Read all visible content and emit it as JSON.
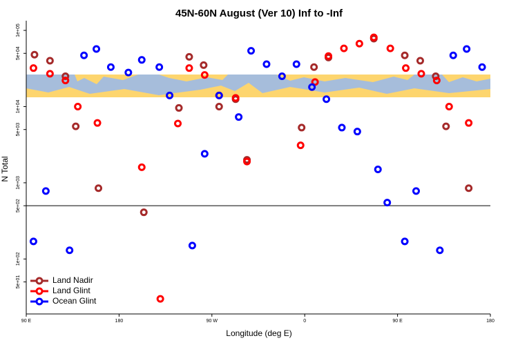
{
  "chart_data": {
    "type": "scatter",
    "title": "45N-60N August (Ver 10)   Inf to -Inf",
    "x_label": "Longitude (deg E)",
    "y_label": "N Total",
    "log_y": true,
    "xlim": [
      90,
      540
    ],
    "ylim": [
      19,
      134000
    ],
    "xticks": [
      {
        "value": 90,
        "label": "90 E"
      },
      {
        "value": 180,
        "label": "180"
      },
      {
        "value": 270,
        "label": "90 W"
      },
      {
        "value": 360,
        "label": "0"
      },
      {
        "value": 450,
        "label": "90 E"
      },
      {
        "value": 540,
        "label": "180"
      }
    ],
    "yticks": [
      {
        "value": 100000,
        "label": "1e+05"
      },
      {
        "value": 50000,
        "label": "5e+04"
      },
      {
        "value": 10000,
        "label": "1e+04"
      },
      {
        "value": 5000,
        "label": "5e+03"
      },
      {
        "value": 1000,
        "label": "1e+03"
      },
      {
        "value": 500,
        "label": "5e+02"
      },
      {
        "value": 100,
        "label": "1e+02"
      },
      {
        "value": 50,
        "label": "5e+01"
      }
    ],
    "hline": 500,
    "legend": "bottom-left",
    "series": [
      {
        "name": "Land Nadir",
        "color": "#a52a2a",
        "x": [
          98,
          113,
          128,
          138,
          160,
          204,
          238,
          248,
          262,
          277,
          293,
          304,
          357,
          369,
          383,
          427,
          457,
          472,
          487,
          497,
          519
        ],
        "values": [
          48000,
          40000,
          25000,
          5500,
          850,
          410,
          9600,
          45000,
          35000,
          10000,
          12500,
          2000,
          5300,
          33000,
          44000,
          78000,
          47000,
          40000,
          25000,
          5500,
          850
        ]
      },
      {
        "name": "Land Glint",
        "color": "#ff0000",
        "x": [
          97,
          113,
          128,
          140,
          159,
          202,
          220,
          237,
          248,
          263,
          277,
          293,
          304,
          356,
          370,
          383,
          398,
          413,
          427,
          443,
          458,
          473,
          488,
          500,
          519
        ],
        "values": [
          32000,
          27000,
          22000,
          10000,
          6100,
          1600,
          30,
          6000,
          32000,
          26000,
          14000,
          13000,
          1900,
          3100,
          21000,
          46000,
          58000,
          67000,
          81000,
          58000,
          32000,
          27000,
          22000,
          10000,
          6100
        ]
      },
      {
        "name": "Ocean Glint",
        "color": "#0000ff",
        "x": [
          97,
          109,
          132,
          146,
          158,
          172,
          189,
          202,
          219,
          229,
          251,
          263,
          277,
          296,
          308,
          323,
          338,
          352,
          367,
          381,
          396,
          411,
          431,
          440,
          457,
          468,
          491,
          504,
          517,
          532
        ],
        "values": [
          170,
          780,
          130,
          47000,
          57000,
          33000,
          28000,
          41000,
          33000,
          14000,
          150,
          2400,
          14000,
          7300,
          54000,
          36000,
          25000,
          36000,
          18000,
          12500,
          5300,
          4700,
          1500,
          550,
          170,
          780,
          130,
          47000,
          57000,
          33000
        ]
      }
    ]
  }
}
